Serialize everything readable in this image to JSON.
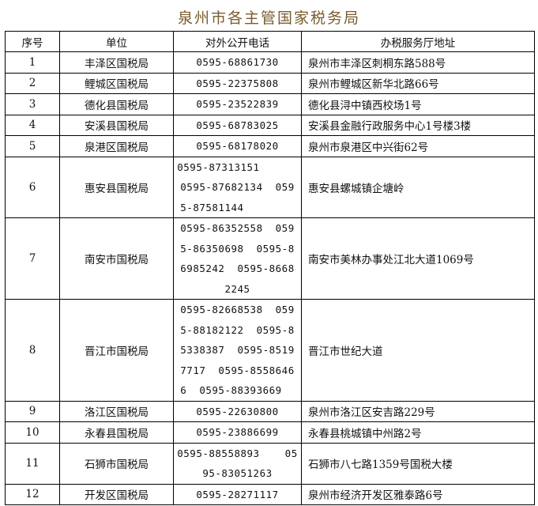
{
  "title": "泉州市各主管国家税务局",
  "headers": [
    "序号",
    "单位",
    "对外公开电话",
    "办税服务厅地址"
  ],
  "rows": [
    {
      "no": "1",
      "unit": "丰泽区国税局",
      "phone": [
        "0595-68861730"
      ],
      "address": "泉州市丰泽区刺桐东路588号"
    },
    {
      "no": "2",
      "unit": "鲤城区国税局",
      "phone": [
        "0595-22375808"
      ],
      "address": "泉州市鲤城区新华北路66号"
    },
    {
      "no": "3",
      "unit": "德化县国税局",
      "phone": [
        "0595-23522839"
      ],
      "address": "德化县浔中镇西校场1号"
    },
    {
      "no": "4",
      "unit": "安溪县国税局",
      "phone": [
        "0595-68783025"
      ],
      "address": "安溪县金融行政服务中心1号楼3楼"
    },
    {
      "no": "5",
      "unit": "泉港区国税局",
      "phone": [
        "0595-68178020"
      ],
      "address": "泉州市泉港区中兴街62号"
    },
    {
      "no": "6",
      "unit": "惠安县国税局",
      "phone": [
        "0595-87313151      ",
        "0595-87682134  059",
        "5-87581144        "
      ],
      "address": "惠安县螺城镇企塘岭"
    },
    {
      "no": "7",
      "unit": "南安市国税局",
      "phone": [
        "0595-86352558  059",
        "5-86350698  0595-8",
        "6985242  0595-8668",
        "2245"
      ],
      "address": "南安市美林办事处江北大道1069号"
    },
    {
      "no": "8",
      "unit": "晋江市国税局",
      "phone": [
        "0595-82668538  059",
        "5-88182122  0595-8",
        "5338387  0595-8519",
        "7717  0595-8558646",
        "6  0595-88393669  "
      ],
      "address": "晋江市世纪大道"
    },
    {
      "no": "9",
      "unit": "洛江区国税局",
      "phone": [
        "0595-22630800"
      ],
      "address": "泉州市洛江区安吉路229号"
    },
    {
      "no": "10",
      "unit": "永春县国税局",
      "phone": [
        "0595-23886699"
      ],
      "address": "永春县桃城镇中州路2号"
    },
    {
      "no": "11",
      "unit": "石狮市国税局",
      "phone": [
        "0595-88558893    05",
        "95-83051263"
      ],
      "address": "石狮市八七路1359号国税大楼"
    },
    {
      "no": "12",
      "unit": "开发区国税局",
      "phone": [
        "0595-28271117"
      ],
      "address": "泉州市经济开发区雅泰路6号"
    }
  ]
}
